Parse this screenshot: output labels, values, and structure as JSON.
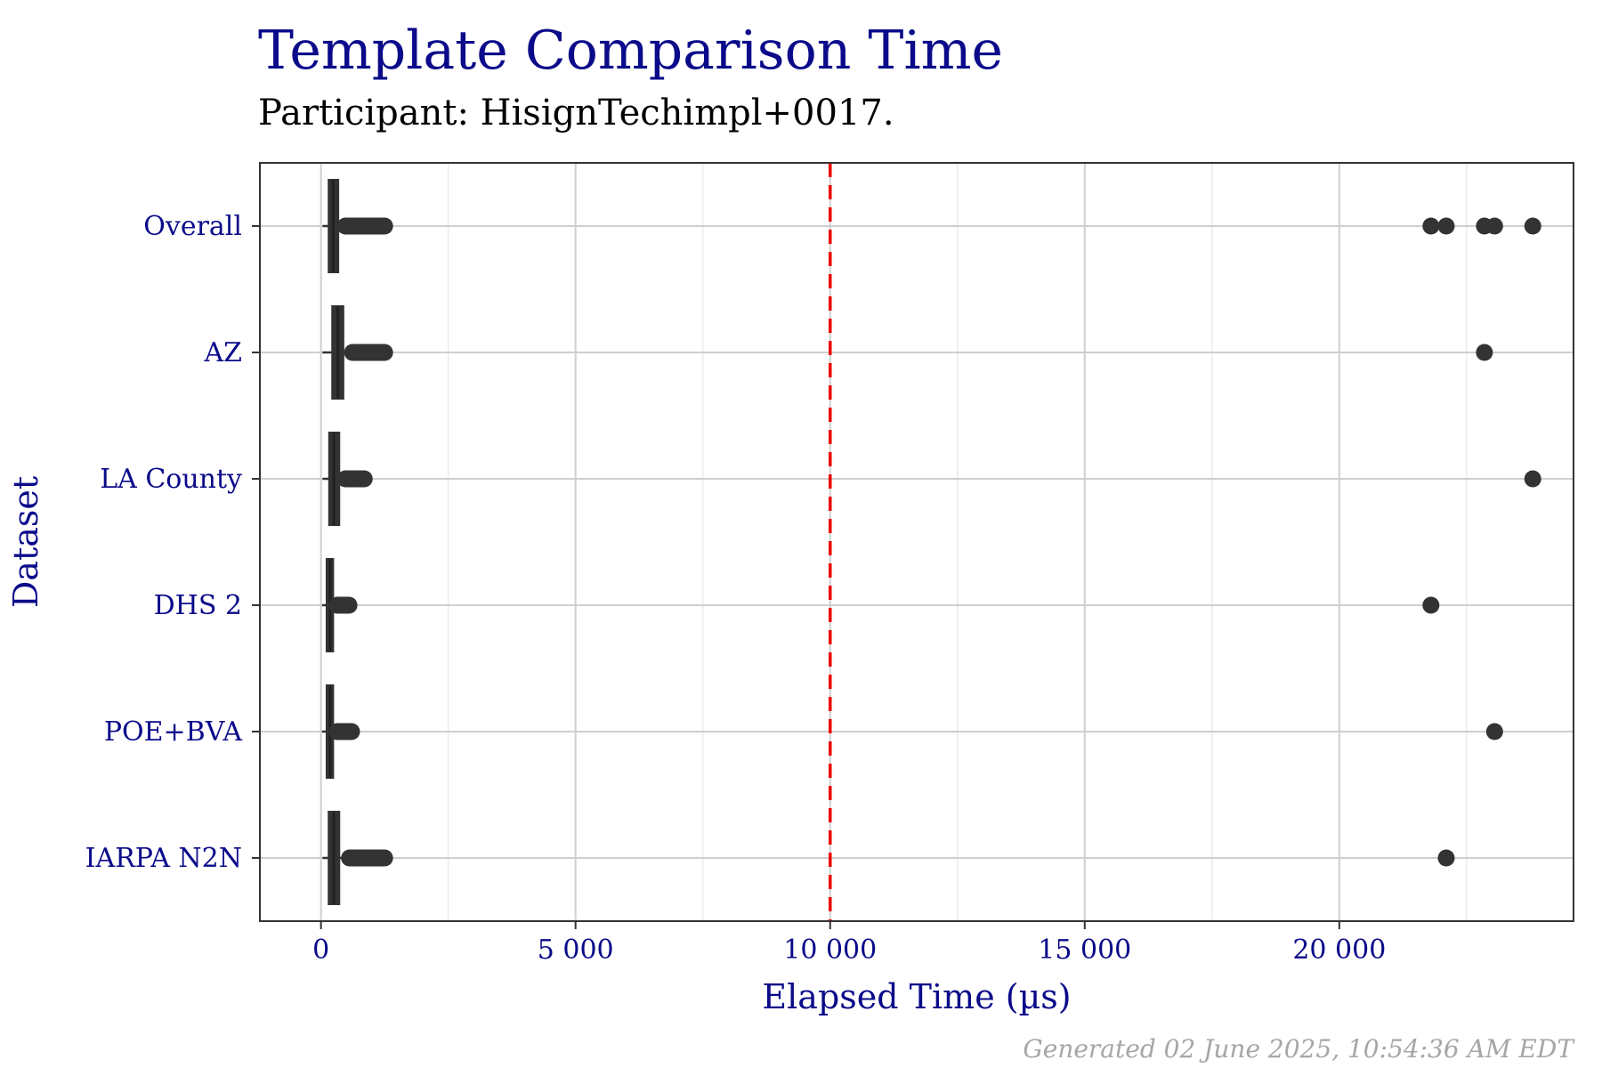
{
  "title": "Template Comparison Time",
  "subtitle": "Participant: HisignTechimpl+0017.",
  "caption": "Generated 02 June 2025, 10:54:36 AM EDT",
  "chart_data": {
    "type": "boxplot",
    "orientation": "horizontal",
    "xlabel": "Elapsed Time (µs)",
    "ylabel": "Dataset",
    "xlim": [
      -1200,
      24600
    ],
    "x_ticks": [
      0,
      5000,
      10000,
      15000,
      20000
    ],
    "x_tick_labels": [
      "0",
      "5 000",
      "10 000",
      "15 000",
      "20 000"
    ],
    "reference_line": {
      "x": 10000,
      "color": "#ee0000",
      "style": "dashed"
    },
    "grid": true,
    "categories": [
      "Overall",
      "AZ",
      "LA County",
      "DHS 2",
      "POE+BVA",
      "IARPA N2N"
    ],
    "series": [
      {
        "name": "Overall",
        "whisker_low": 30,
        "q1": 150,
        "median": 240,
        "q3": 340,
        "whisker_high": 480,
        "outlier_range": [
          480,
          1250
        ],
        "far_outliers": [
          21800,
          22100,
          22850,
          23050,
          23800
        ]
      },
      {
        "name": "AZ",
        "whisker_low": 30,
        "q1": 220,
        "median": 330,
        "q3": 440,
        "whisker_high": 620,
        "outlier_range": [
          620,
          1250
        ],
        "far_outliers": [
          22850
        ]
      },
      {
        "name": "LA County",
        "whisker_low": 30,
        "q1": 160,
        "median": 250,
        "q3": 360,
        "whisker_high": 480,
        "outlier_range": [
          480,
          850
        ],
        "far_outliers": [
          23800
        ]
      },
      {
        "name": "DHS 2",
        "whisker_low": 20,
        "q1": 110,
        "median": 180,
        "q3": 240,
        "whisker_high": 320,
        "outlier_range": [
          320,
          550
        ],
        "far_outliers": [
          21800
        ]
      },
      {
        "name": "POE+BVA",
        "whisker_low": 20,
        "q1": 110,
        "median": 180,
        "q3": 240,
        "whisker_high": 320,
        "outlier_range": [
          320,
          600
        ],
        "far_outliers": [
          23050
        ]
      },
      {
        "name": "IARPA N2N",
        "whisker_low": 30,
        "q1": 150,
        "median": 250,
        "q3": 360,
        "whisker_high": 560,
        "outlier_range": [
          560,
          1250
        ],
        "far_outliers": [
          22100
        ]
      }
    ],
    "colors": {
      "box": "#333333",
      "grid_major": "#cfcfcf",
      "grid_minor": "#ebebeb",
      "panel_border": "#333333"
    }
  }
}
